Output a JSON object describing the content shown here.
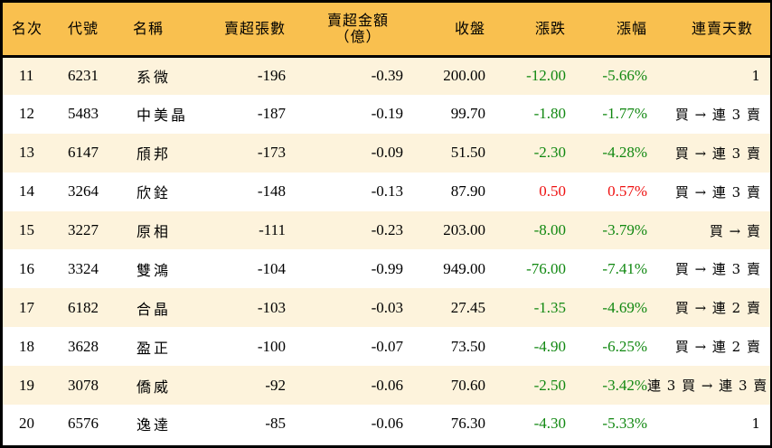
{
  "table": {
    "headers": {
      "rank": "名次",
      "code": "代號",
      "name": "名稱",
      "net_sell_lots": "賣超張數",
      "net_sell_amount_line1": "賣超金額",
      "net_sell_amount_line2": "（億）",
      "close": "收盤",
      "change": "漲跌",
      "change_pct": "漲幅",
      "streak": "連賣天數"
    },
    "colors": {
      "header_bg": "#f9c04f",
      "row_odd_bg": "#fdf3dc",
      "row_even_bg": "#ffffff",
      "negative": "#118811",
      "positive": "#ee1111"
    },
    "rows": [
      {
        "rank": "11",
        "code": "6231",
        "name": "系微",
        "net_sell_lots": "-196",
        "net_sell_amount": "-0.39",
        "close": "200.00",
        "change": "-12.00",
        "change_pct": "-5.66%",
        "direction": "neg",
        "streak": "1"
      },
      {
        "rank": "12",
        "code": "5483",
        "name": "中美晶",
        "net_sell_lots": "-187",
        "net_sell_amount": "-0.19",
        "close": "99.70",
        "change": "-1.80",
        "change_pct": "-1.77%",
        "direction": "neg",
        "streak": "買 → 連 3 賣"
      },
      {
        "rank": "13",
        "code": "6147",
        "name": "頎邦",
        "net_sell_lots": "-173",
        "net_sell_amount": "-0.09",
        "close": "51.50",
        "change": "-2.30",
        "change_pct": "-4.28%",
        "direction": "neg",
        "streak": "買 → 連 3 賣"
      },
      {
        "rank": "14",
        "code": "3264",
        "name": "欣銓",
        "net_sell_lots": "-148",
        "net_sell_amount": "-0.13",
        "close": "87.90",
        "change": "0.50",
        "change_pct": "0.57%",
        "direction": "pos",
        "streak": "買 → 連 3 賣"
      },
      {
        "rank": "15",
        "code": "3227",
        "name": "原相",
        "net_sell_lots": "-111",
        "net_sell_amount": "-0.23",
        "close": "203.00",
        "change": "-8.00",
        "change_pct": "-3.79%",
        "direction": "neg",
        "streak": "買 → 賣"
      },
      {
        "rank": "16",
        "code": "3324",
        "name": "雙鴻",
        "net_sell_lots": "-104",
        "net_sell_amount": "-0.99",
        "close": "949.00",
        "change": "-76.00",
        "change_pct": "-7.41%",
        "direction": "neg",
        "streak": "買 → 連 3 賣"
      },
      {
        "rank": "17",
        "code": "6182",
        "name": "合晶",
        "net_sell_lots": "-103",
        "net_sell_amount": "-0.03",
        "close": "27.45",
        "change": "-1.35",
        "change_pct": "-4.69%",
        "direction": "neg",
        "streak": "買 → 連 2 賣"
      },
      {
        "rank": "18",
        "code": "3628",
        "name": "盈正",
        "net_sell_lots": "-100",
        "net_sell_amount": "-0.07",
        "close": "73.50",
        "change": "-4.90",
        "change_pct": "-6.25%",
        "direction": "neg",
        "streak": "買 → 連 2 賣"
      },
      {
        "rank": "19",
        "code": "3078",
        "name": "僑威",
        "net_sell_lots": "-92",
        "net_sell_amount": "-0.06",
        "close": "70.60",
        "change": "-2.50",
        "change_pct": "-3.42%",
        "direction": "neg",
        "streak": "連 3 買 → 連 3 賣"
      },
      {
        "rank": "20",
        "code": "6576",
        "name": "逸達",
        "net_sell_lots": "-85",
        "net_sell_amount": "-0.06",
        "close": "76.30",
        "change": "-4.30",
        "change_pct": "-5.33%",
        "direction": "neg",
        "streak": "1"
      }
    ]
  }
}
